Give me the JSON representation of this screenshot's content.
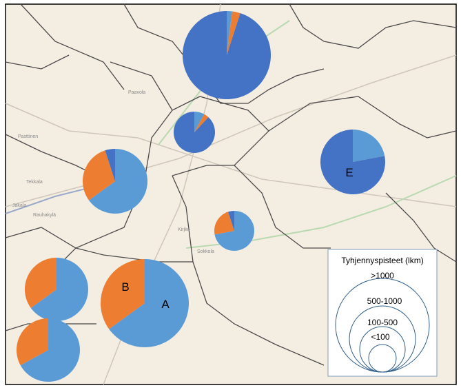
{
  "legend": {
    "title": "Tyhjennyspisteet (lkm)",
    "labels": [
      ">1000",
      "500-1000",
      "100-500",
      "<100"
    ]
  },
  "colors": [
    "#5b9bd5",
    "#ed7d31",
    "#4472c4"
  ],
  "pies": [
    {
      "values": [
        2,
        3,
        95
      ],
      "labels": [
        null,
        null,
        null
      ],
      "colors": [
        0,
        1,
        2
      ]
    },
    {
      "values": [
        8,
        4,
        88
      ],
      "labels": [
        null,
        null,
        null
      ],
      "colors": [
        0,
        1,
        2
      ]
    },
    {
      "values": [
        65,
        30,
        5
      ],
      "labels": [
        null,
        null,
        null
      ],
      "colors": [
        0,
        1,
        2
      ]
    },
    {
      "values": [
        22,
        78
      ],
      "labels": [
        null,
        "E"
      ],
      "colors": [
        0,
        2
      ]
    },
    {
      "values": [
        72,
        23,
        5
      ],
      "labels": [
        null,
        null,
        null
      ],
      "colors": [
        0,
        1,
        2
      ]
    },
    {
      "values": [
        65,
        35
      ],
      "labels": [
        null,
        null
      ],
      "colors": [
        0,
        1
      ]
    },
    {
      "values": [
        65,
        35
      ],
      "labels": [
        "A",
        "B"
      ],
      "colors": [
        0,
        1
      ]
    },
    {
      "values": [
        67,
        33
      ],
      "labels": [
        null,
        null
      ],
      "colors": [
        0,
        1
      ]
    }
  ],
  "places": [
    "Paavola",
    "Pasttinen",
    "Tekkala",
    "Jakala",
    "Rauhakylä",
    "Kirjko",
    "Sokkola"
  ]
}
